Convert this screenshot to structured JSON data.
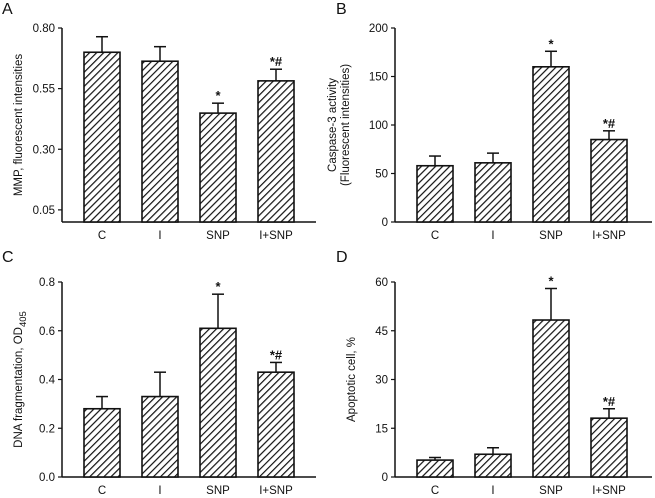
{
  "chart_data": [
    {
      "panel": "A",
      "type": "bar",
      "categories": [
        "C",
        "I",
        "SNP",
        "I+SNP"
      ],
      "values": [
        0.7,
        0.663,
        0.449,
        0.582
      ],
      "error_upper": [
        0.764,
        0.723,
        0.49,
        0.63
      ],
      "annotations": [
        "",
        "",
        "*",
        "*#"
      ],
      "ylabel": [
        "MMP, fluorescent intensities"
      ],
      "ylim": [
        0,
        0.8
      ],
      "yticks": [
        "0.05",
        "0.30",
        "0.55",
        "0.80"
      ],
      "ytick_values": [
        0.05,
        0.3,
        0.55,
        0.8
      ],
      "grid": false,
      "pattern": "diagonal-hatch"
    },
    {
      "panel": "B",
      "type": "bar",
      "categories": [
        "C",
        "I",
        "SNP",
        "I+SNP"
      ],
      "values": [
        58,
        61,
        160,
        85
      ],
      "error_upper": [
        68,
        71,
        176,
        94
      ],
      "annotations": [
        "",
        "",
        "*",
        "*#"
      ],
      "ylabel": [
        "Caspase-3 activity",
        "(Fluorescent intensities)"
      ],
      "ylim": [
        0,
        200
      ],
      "yticks": [
        "0",
        "50",
        "100",
        "150",
        "200"
      ],
      "ytick_values": [
        0,
        50,
        100,
        150,
        200
      ],
      "grid": false,
      "pattern": "diagonal-hatch"
    },
    {
      "panel": "C",
      "type": "bar",
      "categories": [
        "C",
        "I",
        "SNP",
        "I+SNP"
      ],
      "values": [
        0.28,
        0.33,
        0.61,
        0.43
      ],
      "error_upper": [
        0.33,
        0.43,
        0.75,
        0.47
      ],
      "annotations": [
        "",
        "",
        "*",
        "*#"
      ],
      "ylabel": [
        "DNA fragmentation, OD"
      ],
      "ylabel_subscript": "405",
      "ylim": [
        0,
        0.8
      ],
      "yticks": [
        "0.0",
        "0.2",
        "0.4",
        "0.6",
        "0.8"
      ],
      "ytick_values": [
        0,
        0.2,
        0.4,
        0.6,
        0.8
      ],
      "grid": false,
      "pattern": "diagonal-hatch"
    },
    {
      "panel": "D",
      "type": "bar",
      "categories": [
        "C",
        "I",
        "SNP",
        "I+SNP"
      ],
      "values": [
        5.2,
        7,
        48.3,
        18.1
      ],
      "error_upper": [
        6,
        9,
        58,
        21
      ],
      "annotations": [
        "",
        "",
        "*",
        "*#"
      ],
      "ylabel": [
        "Apoptotic cell,  %"
      ],
      "ylim": [
        0,
        60
      ],
      "yticks": [
        "0",
        "15",
        "30",
        "45",
        "60"
      ],
      "ytick_values": [
        0,
        15,
        30,
        45,
        60
      ],
      "grid": false,
      "pattern": "diagonal-hatch"
    }
  ]
}
